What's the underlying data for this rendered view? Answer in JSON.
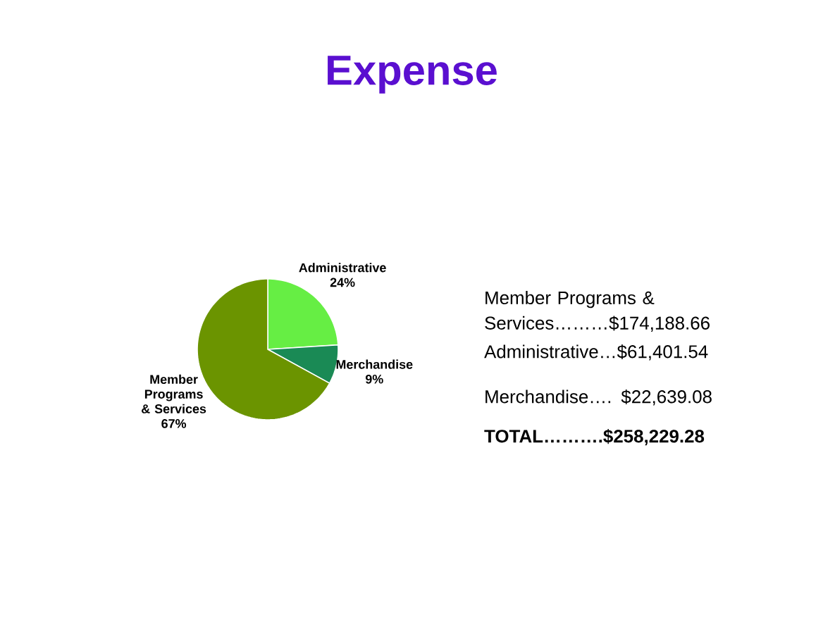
{
  "chart_data": {
    "type": "pie",
    "title": "Expense",
    "categories": [
      "Administrative",
      "Merchandise",
      "Member Programs & Services"
    ],
    "values": [
      24,
      9,
      67
    ],
    "colors": [
      "#66ee44",
      "#1a8a55",
      "#6b9400"
    ],
    "value_labels": [
      "24%",
      "9%",
      "67%"
    ],
    "annotations": [
      "Member Programs & Services………$174,188.66",
      "Administrative…$61,401.54",
      "Merchandise…. $22,639.08",
      "**TOTAL……….$258,229.28**"
    ]
  }
}
